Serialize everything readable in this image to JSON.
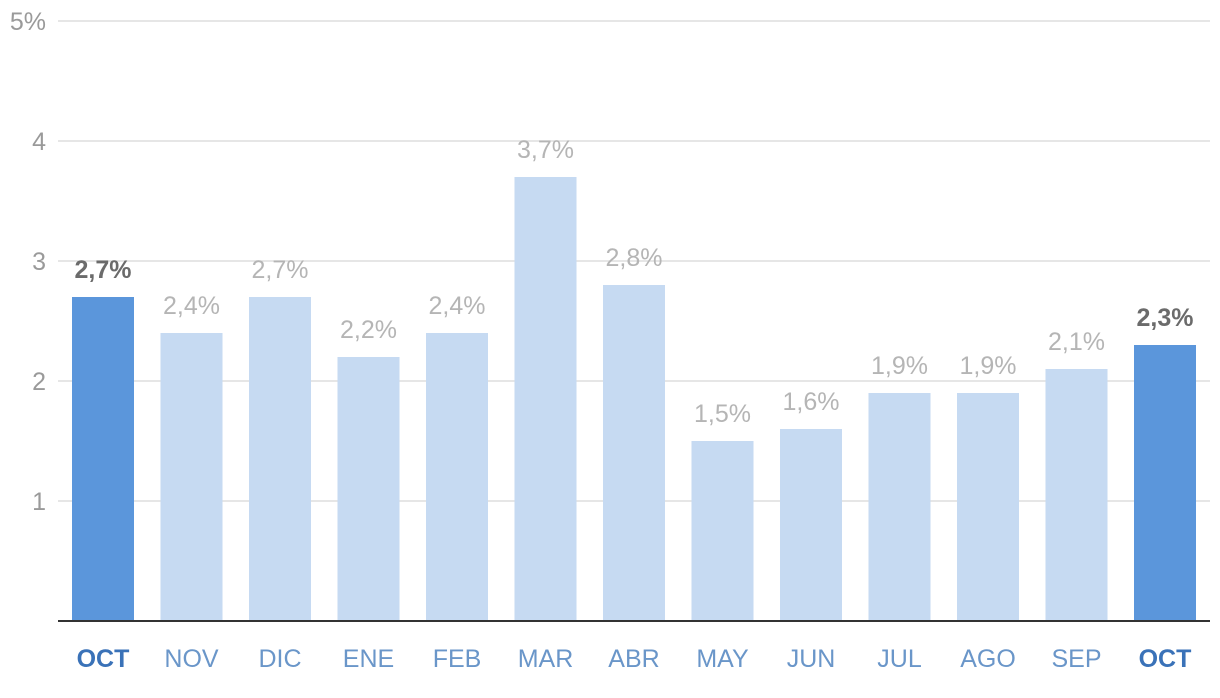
{
  "chart_data": {
    "type": "bar",
    "categories": [
      "OCT",
      "NOV",
      "DIC",
      "ENE",
      "FEB",
      "MAR",
      "ABR",
      "MAY",
      "JUN",
      "JUL",
      "AGO",
      "SEP",
      "OCT"
    ],
    "values": [
      2.7,
      2.4,
      2.7,
      2.2,
      2.4,
      3.7,
      2.8,
      1.5,
      1.6,
      1.9,
      1.9,
      2.1,
      2.3
    ],
    "data_labels": [
      "2,7%",
      "2,4%",
      "2,7%",
      "2,2%",
      "2,4%",
      "3,7%",
      "2,8%",
      "1,5%",
      "1,6%",
      "1,9%",
      "1,9%",
      "2,1%",
      "2,3%"
    ],
    "highlighted": [
      true,
      false,
      false,
      false,
      false,
      false,
      false,
      false,
      false,
      false,
      false,
      false,
      true
    ],
    "y_ticks": [
      {
        "value": 1,
        "label": "1"
      },
      {
        "value": 2,
        "label": "2"
      },
      {
        "value": 3,
        "label": "3"
      },
      {
        "value": 4,
        "label": "4"
      },
      {
        "value": 5,
        "label": "5%"
      }
    ],
    "ylim": [
      0,
      5
    ],
    "grid": true,
    "title": "",
    "xlabel": "",
    "ylabel": "",
    "colors": {
      "bar": "#c6daf2",
      "bar_highlight": "#5b96db",
      "grid": "#dddddd",
      "baseline": "#333333",
      "tick_text": "#9a9a9a",
      "value_text": "#b5b5b5",
      "value_text_highlight": "#6b6b6b",
      "category_text": "#6a96c9",
      "category_text_highlight": "#3a72b8"
    }
  }
}
